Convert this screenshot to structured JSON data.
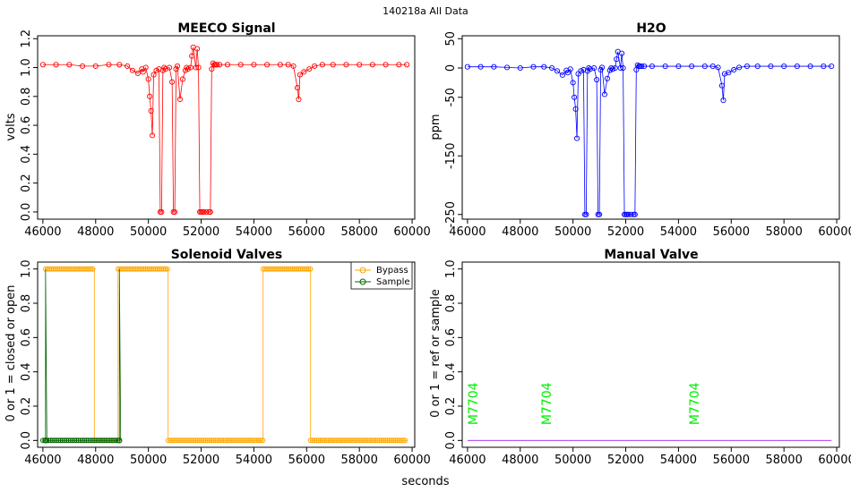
{
  "figure": {
    "suptitle": "140218a   All Data",
    "xlabel": "seconds"
  },
  "chart_data": [
    {
      "type": "scatter",
      "title": "MEECO Signal",
      "xlabel": "",
      "ylabel": "volts",
      "xlim": [
        45800,
        60100
      ],
      "ylim": [
        -0.05,
        1.22
      ],
      "xticks": [
        46000,
        48000,
        50000,
        52000,
        54000,
        56000,
        58000,
        60000
      ],
      "yticks": [
        0.0,
        0.2,
        0.4,
        0.6,
        0.8,
        1.0,
        1.2
      ],
      "color": "#ff0000",
      "series": [
        {
          "name": "MEECO",
          "x": [
            46000,
            46500,
            47000,
            47500,
            48000,
            48500,
            48900,
            49200,
            49400,
            49600,
            49750,
            49800,
            49900,
            50000,
            50050,
            50100,
            50150,
            50200,
            50300,
            50400,
            50450,
            50500,
            50550,
            50600,
            50650,
            50800,
            50900,
            50950,
            51000,
            51050,
            51100,
            51200,
            51300,
            51400,
            51450,
            51500,
            51600,
            51650,
            51700,
            51800,
            51850,
            51900,
            51950,
            52000,
            52050,
            52100,
            52200,
            52300,
            52350,
            52400,
            52450,
            52500,
            52550,
            52600,
            52700,
            53000,
            53500,
            54000,
            54500,
            55000,
            55300,
            55500,
            55650,
            55700,
            55750,
            55900,
            56100,
            56300,
            56600,
            57000,
            57500,
            58000,
            58500,
            59000,
            59500,
            59800
          ],
          "y": [
            1.02,
            1.02,
            1.02,
            1.01,
            1.01,
            1.02,
            1.02,
            1.01,
            0.98,
            0.96,
            0.99,
            0.97,
            1.0,
            0.92,
            0.8,
            0.7,
            0.53,
            0.95,
            0.98,
            0.99,
            0.0,
            0.0,
            0.98,
            1.0,
            0.99,
            1.0,
            0.9,
            0.0,
            0.0,
            0.99,
            1.01,
            0.78,
            0.92,
            0.98,
            1.0,
            0.99,
            1.0,
            1.08,
            1.14,
            1.0,
            1.13,
            1.0,
            0.0,
            0.0,
            0.0,
            0.0,
            0.0,
            0.0,
            0.0,
            0.99,
            1.03,
            1.02,
            1.02,
            1.02,
            1.02,
            1.02,
            1.02,
            1.02,
            1.02,
            1.02,
            1.02,
            1.01,
            0.86,
            0.78,
            0.95,
            0.97,
            0.99,
            1.01,
            1.02,
            1.02,
            1.02,
            1.02,
            1.02,
            1.02,
            1.02,
            1.02
          ]
        }
      ]
    },
    {
      "type": "scatter",
      "title": "H2O",
      "xlabel": "",
      "ylabel": "ppm",
      "xlim": [
        45800,
        60100
      ],
      "ylim": [
        -258,
        55
      ],
      "xticks": [
        46000,
        48000,
        50000,
        52000,
        54000,
        56000,
        58000,
        60000
      ],
      "yticks": [
        50,
        0,
        -50,
        -150,
        -250
      ],
      "color": "#0000ff",
      "series": [
        {
          "name": "H2O",
          "x": [
            46000,
            46500,
            47000,
            47500,
            48000,
            48500,
            48900,
            49200,
            49400,
            49600,
            49750,
            49800,
            49900,
            50000,
            50050,
            50100,
            50150,
            50200,
            50300,
            50400,
            50450,
            50500,
            50550,
            50600,
            50650,
            50800,
            50900,
            50950,
            51000,
            51050,
            51100,
            51200,
            51300,
            51400,
            51450,
            51500,
            51600,
            51650,
            51700,
            51800,
            51850,
            51900,
            51950,
            52000,
            52050,
            52100,
            52200,
            52300,
            52350,
            52400,
            52450,
            52500,
            52550,
            52600,
            52700,
            53000,
            53500,
            54000,
            54500,
            55000,
            55300,
            55500,
            55650,
            55700,
            55750,
            55900,
            56100,
            56300,
            56600,
            57000,
            57500,
            58000,
            58500,
            59000,
            59500,
            59800
          ],
          "y": [
            2,
            2,
            2,
            1,
            0,
            2,
            2,
            0,
            -5,
            -12,
            -4,
            -8,
            -2,
            -25,
            -50,
            -70,
            -120,
            -10,
            -5,
            -3,
            -250,
            -250,
            -5,
            0,
            -2,
            0,
            -20,
            -250,
            -250,
            -3,
            1,
            -45,
            -18,
            -4,
            0,
            -2,
            0,
            15,
            28,
            0,
            25,
            0,
            -250,
            -250,
            -250,
            -250,
            -250,
            -250,
            -250,
            -3,
            5,
            3,
            3,
            3,
            3,
            3,
            3,
            3,
            3,
            3,
            3,
            1,
            -30,
            -55,
            -10,
            -8,
            -3,
            1,
            3,
            3,
            3,
            3,
            3,
            3,
            3,
            3
          ]
        }
      ]
    },
    {
      "type": "line",
      "title": "Solenoid Valves",
      "xlabel": "",
      "ylabel": "0 or 1 = closed or open",
      "xlim": [
        45800,
        60100
      ],
      "ylim": [
        -0.04,
        1.04
      ],
      "xticks": [
        46000,
        48000,
        50000,
        52000,
        54000,
        56000,
        58000,
        60000
      ],
      "yticks": [
        0.0,
        0.2,
        0.4,
        0.6,
        0.8,
        1.0
      ],
      "legend": "top-right",
      "series": [
        {
          "name": "Bypass",
          "color": "#ffa500",
          "x": [
            46100,
            47950,
            47950,
            48850,
            48850,
            50750,
            50750,
            54350,
            54350,
            56150,
            56150,
            59800
          ],
          "y": [
            1,
            1,
            0,
            0,
            1,
            1,
            0,
            0,
            1,
            1,
            0,
            0
          ]
        },
        {
          "name": "Sample",
          "color": "#006400",
          "x": [
            46000,
            46100,
            46100,
            46150,
            46150,
            48900,
            48900,
            48950
          ],
          "y": [
            0,
            0,
            1,
            0,
            0,
            0,
            1,
            0
          ]
        }
      ]
    },
    {
      "type": "line",
      "title": "Manual Valve",
      "xlabel": "",
      "ylabel": "0 or 1 = ref or sample",
      "xlim": [
        45800,
        60100
      ],
      "ylim": [
        -0.04,
        1.04
      ],
      "xticks": [
        46000,
        48000,
        50000,
        52000,
        54000,
        56000,
        58000,
        60000
      ],
      "yticks": [
        0.0,
        0.2,
        0.4,
        0.6,
        0.8,
        1.0
      ],
      "series": [
        {
          "name": "Manual",
          "color": "#a020f0",
          "x": [
            46000,
            59800
          ],
          "y": [
            0,
            0
          ]
        }
      ],
      "annotations": [
        {
          "text": "M7704",
          "x": 46200,
          "y": 0.1,
          "color": "#00ee00"
        },
        {
          "text": "M7704",
          "x": 49000,
          "y": 0.1,
          "color": "#00ee00"
        },
        {
          "text": "M7704",
          "x": 54600,
          "y": 0.1,
          "color": "#00ee00"
        }
      ]
    }
  ]
}
